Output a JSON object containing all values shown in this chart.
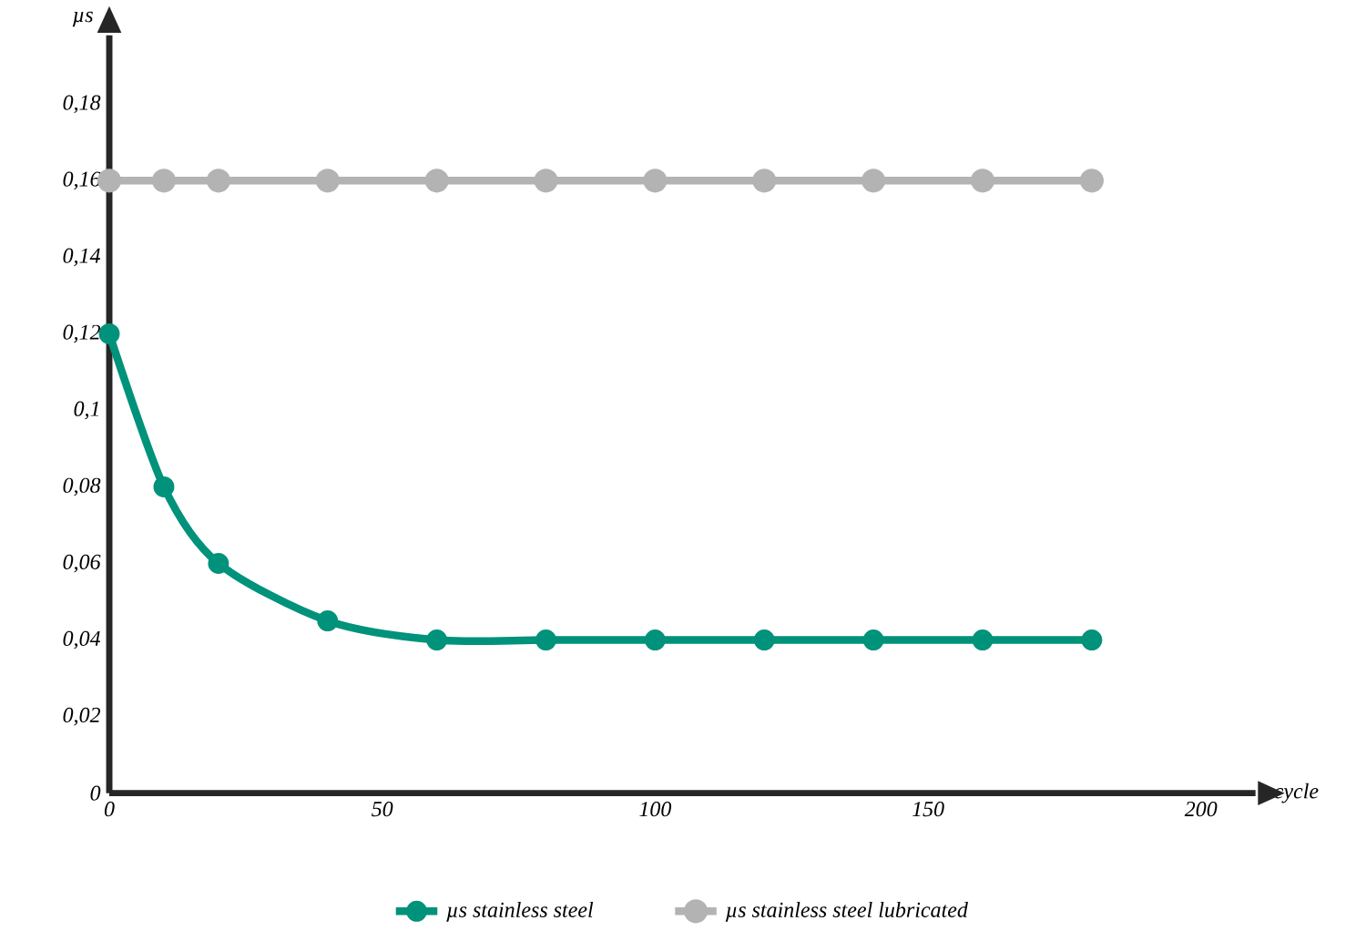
{
  "chart_data": {
    "type": "line",
    "xlabel": "cycle",
    "ylabel": "µs",
    "x": [
      0,
      10,
      20,
      40,
      60,
      80,
      100,
      120,
      140,
      160,
      180
    ],
    "series": [
      {
        "name": "µs stainless steel",
        "color": "#00927a",
        "values": [
          0.12,
          0.08,
          0.06,
          0.045,
          0.04,
          0.04,
          0.04,
          0.04,
          0.04,
          0.04,
          0.04
        ]
      },
      {
        "name": "µs stainless steel lubricated",
        "color": "#b3b3b3",
        "values": [
          0.16,
          0.16,
          0.16,
          0.16,
          0.16,
          0.16,
          0.16,
          0.16,
          0.16,
          0.16,
          0.16
        ]
      }
    ],
    "xlim": [
      0,
      210
    ],
    "ylim": [
      0,
      0.198
    ],
    "xticks": [
      0,
      50,
      100,
      150,
      200
    ],
    "yticks": [
      {
        "value": 0,
        "label": "0"
      },
      {
        "value": 0.02,
        "label": "0,02"
      },
      {
        "value": 0.04,
        "label": "0,04"
      },
      {
        "value": 0.06,
        "label": "0,06"
      },
      {
        "value": 0.08,
        "label": "0,08"
      },
      {
        "value": 0.1,
        "label": "0,1"
      },
      {
        "value": 0.12,
        "label": "0,12"
      },
      {
        "value": 0.14,
        "label": "0,14"
      },
      {
        "value": 0.16,
        "label": "0,16"
      },
      {
        "value": 0.18,
        "label": "0,18"
      }
    ],
    "legend": "bottom",
    "marker": "circle",
    "line_style": "solid",
    "grid": false
  }
}
